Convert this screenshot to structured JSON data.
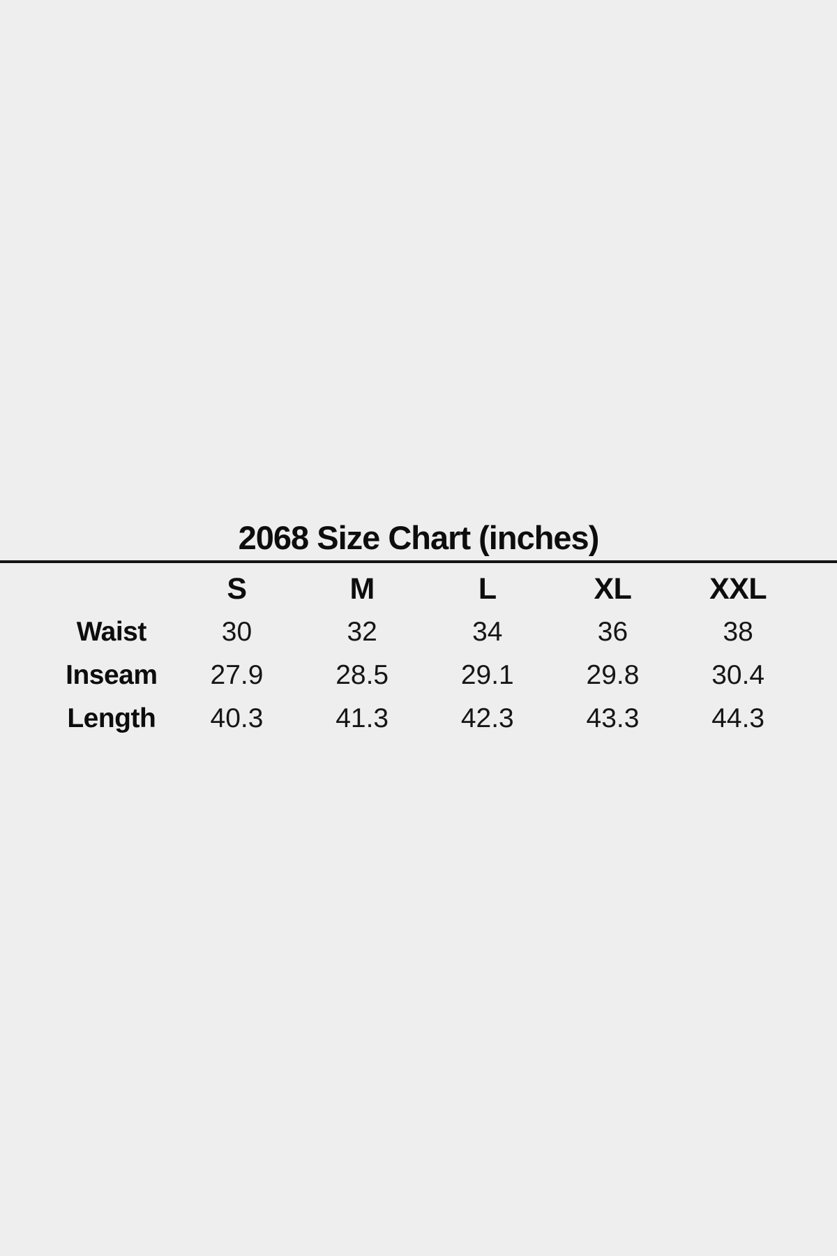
{
  "page": {
    "background_color": "#eeeeee",
    "text_color": "#111111",
    "divider_color": "#141414"
  },
  "size_chart": {
    "title": "2068 Size Chart (inches)",
    "columns": [
      "S",
      "M",
      "L",
      "XL",
      "XXL"
    ],
    "rows": [
      {
        "label": "Waist",
        "values": [
          "30",
          "32",
          "34",
          "36",
          "38"
        ]
      },
      {
        "label": "Inseam",
        "values": [
          "27.9",
          "28.5",
          "29.1",
          "29.8",
          "30.4"
        ]
      },
      {
        "label": "Length",
        "values": [
          "40.3",
          "41.3",
          "42.3",
          "43.3",
          "44.3"
        ]
      }
    ]
  }
}
